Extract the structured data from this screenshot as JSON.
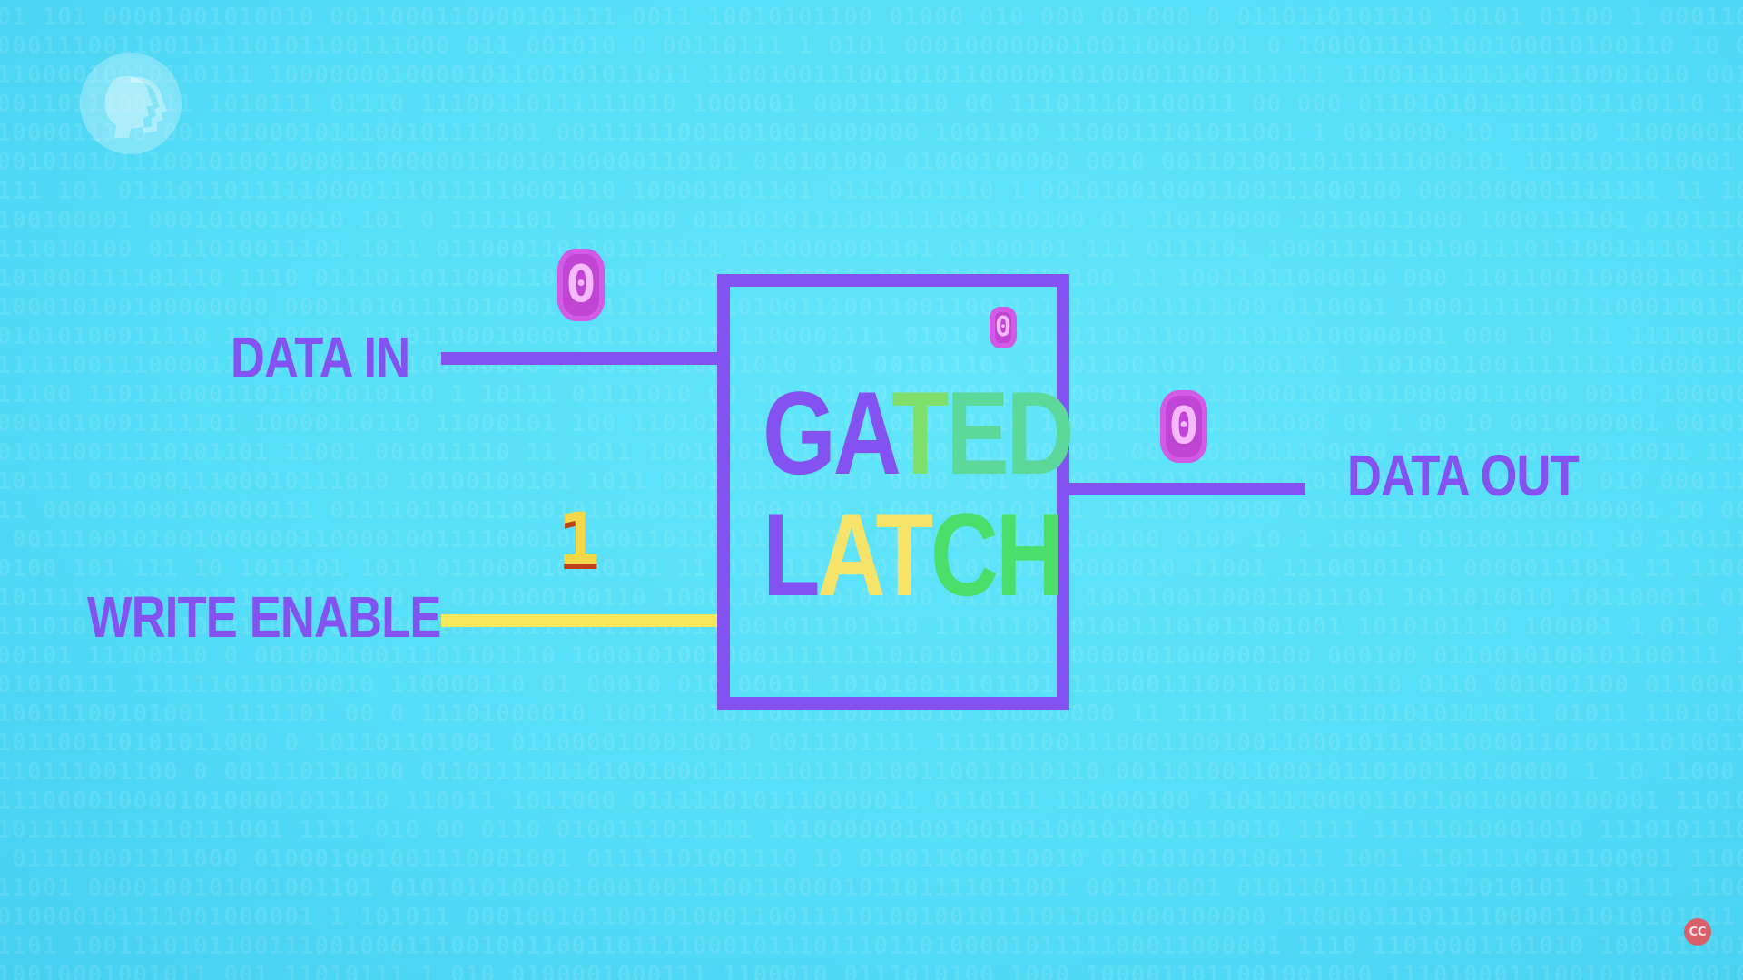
{
  "labels": {
    "data_in": "DATA IN",
    "write_enable": "WRITE ENABLE",
    "data_out": "DATA OUT"
  },
  "latch": {
    "line1": [
      "G",
      "A",
      "T",
      "E",
      "D"
    ],
    "line2": [
      "L",
      "A",
      "T",
      "C",
      "H"
    ]
  },
  "signals": {
    "data_in_bit": "0",
    "write_enable_bit": "1",
    "latch_state_bit": "0",
    "data_out_bit": "0"
  },
  "colors": {
    "background": "#55def8",
    "primary": "#8452f0",
    "write_enable_wire": "#f6e85a",
    "zero_bit": "#c045d4",
    "one_bit": "#f3d94a"
  },
  "icons": {
    "logo": "pbs-logo-icon",
    "captions": "closed-captions-icon"
  },
  "cc_badge": "CC"
}
